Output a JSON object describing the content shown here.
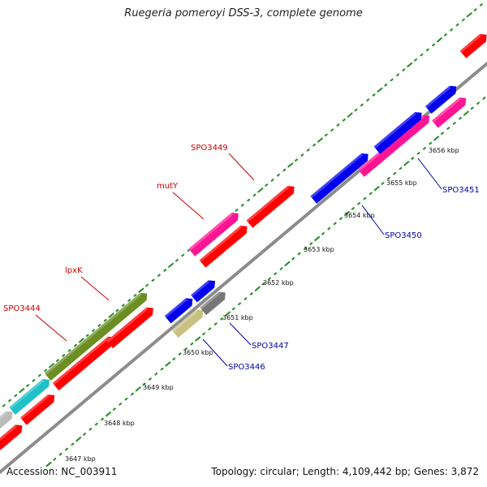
{
  "title": "Ruegeria pomeroyi DSS-3, complete genome",
  "footer": {
    "accession": "Accession: NC_003911",
    "summary": "Topology: circular; Length: 4,109,442 bp; Genes: 3,872"
  },
  "colors": {
    "red": "#ff0000",
    "magenta": "#ff1493",
    "blue": "#0000ee",
    "olive": "#6b8e23",
    "cyan": "#20c0c8",
    "gray": "#777777",
    "light_gray": "#bbbbbb",
    "khaki": "#c8c080",
    "backbone": "#8c8c8c",
    "tick": "#228b22",
    "label_red": "#cc0000",
    "label_blue": "#0000aa"
  },
  "ticks": [
    {
      "label": "3647 kbp"
    },
    {
      "label": "3648 kbp"
    },
    {
      "label": "3649 kbp"
    },
    {
      "label": "3650 kbp"
    },
    {
      "label": "3651 kbp"
    },
    {
      "label": "3652 kbp"
    },
    {
      "label": "3653 kbp"
    },
    {
      "label": "3654 kbp"
    },
    {
      "label": "3655 kbp"
    },
    {
      "label": "3656 kbp"
    }
  ],
  "gene_labels": [
    {
      "name": "SPO3444",
      "color": "label_red"
    },
    {
      "name": "lpxK",
      "color": "label_red"
    },
    {
      "name": "mutY",
      "color": "label_red"
    },
    {
      "name": "SPO3449",
      "color": "label_red"
    },
    {
      "name": "SPO3446",
      "color": "label_blue"
    },
    {
      "name": "SPO3447",
      "color": "label_blue"
    },
    {
      "name": "SPO3450",
      "color": "label_blue"
    },
    {
      "name": "SPO3451",
      "color": "label_blue"
    }
  ]
}
